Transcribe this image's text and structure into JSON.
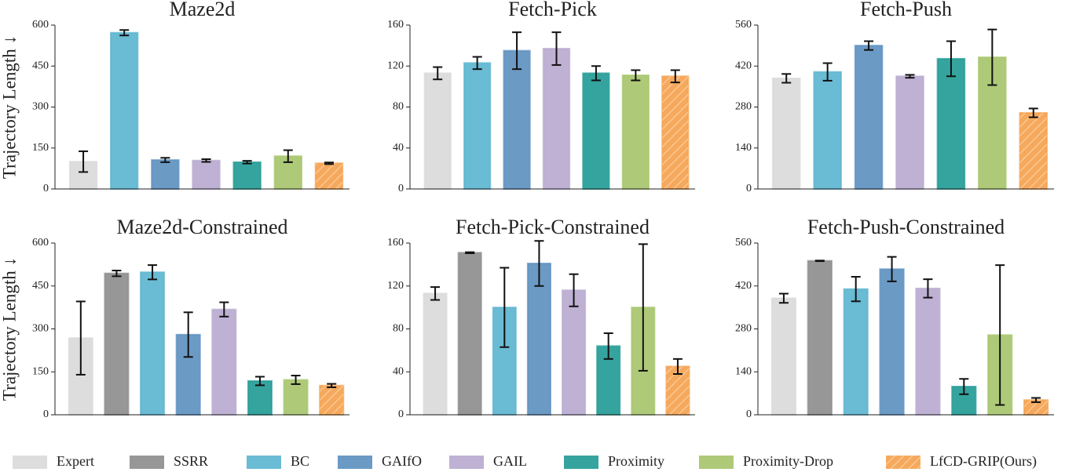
{
  "chart_data": [
    {
      "type": "bar",
      "title": "Maze2d",
      "ylabel": "Trajectory Length ↓",
      "ylim": [
        0,
        600
      ],
      "yticks": [
        0,
        150,
        300,
        450,
        600
      ],
      "series": [
        {
          "name": "Expert",
          "color": "#d9d9d9",
          "values": [
            100
          ],
          "errors": [
            38
          ]
        },
        {
          "name": "BC",
          "color": "#5ab4cf",
          "values": [
            572
          ],
          "errors": [
            10
          ]
        },
        {
          "name": "GAIfO",
          "color": "#5b8fbf",
          "values": [
            106
          ],
          "errors": [
            8
          ]
        },
        {
          "name": "GAIL",
          "color": "#b8a9cf",
          "values": [
            104
          ],
          "errors": [
            5
          ]
        },
        {
          "name": "Proximity",
          "color": "#1f9a94",
          "values": [
            98
          ],
          "errors": [
            5
          ]
        },
        {
          "name": "Proximity-Drop",
          "color": "#a5c46a",
          "values": [
            120
          ],
          "errors": [
            22
          ]
        },
        {
          "name": "LfCD-GRIP(Ours)",
          "color": "#f5a04a",
          "hatch": true,
          "values": [
            94
          ],
          "errors": [
            3
          ]
        }
      ]
    },
    {
      "type": "bar",
      "title": "Fetch-Pick",
      "ylim": [
        0,
        160
      ],
      "yticks": [
        0,
        40,
        80,
        120,
        160
      ],
      "series": [
        {
          "name": "Expert",
          "color": "#d9d9d9",
          "values": [
            113
          ],
          "errors": [
            6
          ]
        },
        {
          "name": "BC",
          "color": "#5ab4cf",
          "values": [
            123
          ],
          "errors": [
            6
          ]
        },
        {
          "name": "GAIfO",
          "color": "#5b8fbf",
          "values": [
            135
          ],
          "errors": [
            18
          ]
        },
        {
          "name": "GAIL",
          "color": "#b8a9cf",
          "values": [
            137
          ],
          "errors": [
            16
          ]
        },
        {
          "name": "Proximity",
          "color": "#1f9a94",
          "values": [
            113
          ],
          "errors": [
            7
          ]
        },
        {
          "name": "Proximity-Drop",
          "color": "#a5c46a",
          "values": [
            111
          ],
          "errors": [
            5
          ]
        },
        {
          "name": "LfCD-GRIP(Ours)",
          "color": "#f5a04a",
          "hatch": true,
          "values": [
            110
          ],
          "errors": [
            6
          ]
        }
      ]
    },
    {
      "type": "bar",
      "title": "Fetch-Push",
      "ylim": [
        0,
        560
      ],
      "yticks": [
        0,
        140,
        280,
        420,
        560
      ],
      "series": [
        {
          "name": "Expert",
          "color": "#d9d9d9",
          "values": [
            378
          ],
          "errors": [
            15
          ]
        },
        {
          "name": "BC",
          "color": "#5ab4cf",
          "values": [
            400
          ],
          "errors": [
            30
          ]
        },
        {
          "name": "GAIfO",
          "color": "#5b8fbf",
          "values": [
            490
          ],
          "errors": [
            15
          ]
        },
        {
          "name": "GAIL",
          "color": "#b8a9cf",
          "values": [
            385
          ],
          "errors": [
            5
          ]
        },
        {
          "name": "Proximity",
          "color": "#1f9a94",
          "values": [
            445
          ],
          "errors": [
            60
          ]
        },
        {
          "name": "Proximity-Drop",
          "color": "#a5c46a",
          "values": [
            450
          ],
          "errors": [
            95
          ]
        },
        {
          "name": "LfCD-GRIP(Ours)",
          "color": "#f5a04a",
          "hatch": true,
          "values": [
            260
          ],
          "errors": [
            15
          ]
        }
      ]
    },
    {
      "type": "bar",
      "title": "Maze2d-Constrained",
      "ylabel": "Trajectory Length ↓",
      "ylim": [
        0,
        600
      ],
      "yticks": [
        0,
        150,
        300,
        450,
        600
      ],
      "series": [
        {
          "name": "Expert",
          "color": "#d9d9d9",
          "values": [
            268
          ],
          "errors": [
            128
          ]
        },
        {
          "name": "SSRR",
          "color": "#8c8c8c",
          "values": [
            494
          ],
          "errors": [
            10
          ]
        },
        {
          "name": "BC",
          "color": "#5ab4cf",
          "values": [
            498
          ],
          "errors": [
            25
          ]
        },
        {
          "name": "GAIfO",
          "color": "#5b8fbf",
          "values": [
            280
          ],
          "errors": [
            78
          ]
        },
        {
          "name": "GAIL",
          "color": "#b8a9cf",
          "values": [
            368
          ],
          "errors": [
            25
          ]
        },
        {
          "name": "Proximity",
          "color": "#1f9a94",
          "values": [
            118
          ],
          "errors": [
            15
          ]
        },
        {
          "name": "Proximity-Drop",
          "color": "#a5c46a",
          "values": [
            122
          ],
          "errors": [
            15
          ]
        },
        {
          "name": "LfCD-GRIP(Ours)",
          "color": "#f5a04a",
          "hatch": true,
          "values": [
            102
          ],
          "errors": [
            6
          ]
        }
      ]
    },
    {
      "type": "bar",
      "title": "Fetch-Pick-Constrained",
      "ylim": [
        0,
        160
      ],
      "yticks": [
        0,
        40,
        80,
        120,
        160
      ],
      "series": [
        {
          "name": "Expert",
          "color": "#d9d9d9",
          "values": [
            113
          ],
          "errors": [
            6
          ]
        },
        {
          "name": "SSRR",
          "color": "#8c8c8c",
          "values": [
            151
          ],
          "errors": [
            0.5
          ]
        },
        {
          "name": "BC",
          "color": "#5ab4cf",
          "values": [
            100
          ],
          "errors": [
            37
          ]
        },
        {
          "name": "GAIfO",
          "color": "#5b8fbf",
          "values": [
            141
          ],
          "errors": [
            21
          ]
        },
        {
          "name": "GAIL",
          "color": "#b8a9cf",
          "values": [
            116
          ],
          "errors": [
            15
          ]
        },
        {
          "name": "Proximity",
          "color": "#1f9a94",
          "values": [
            64
          ],
          "errors": [
            12
          ]
        },
        {
          "name": "Proximity-Drop",
          "color": "#a5c46a",
          "values": [
            100
          ],
          "errors": [
            59
          ]
        },
        {
          "name": "LfCD-GRIP(Ours)",
          "color": "#f5a04a",
          "hatch": true,
          "values": [
            45
          ],
          "errors": [
            7
          ]
        }
      ]
    },
    {
      "type": "bar",
      "title": "Fetch-Push-Constrained",
      "ylim": [
        0,
        560
      ],
      "yticks": [
        0,
        140,
        280,
        420,
        560
      ],
      "series": [
        {
          "name": "Expert",
          "color": "#d9d9d9",
          "values": [
            380
          ],
          "errors": [
            15
          ]
        },
        {
          "name": "SSRR",
          "color": "#8c8c8c",
          "values": [
            502
          ],
          "errors": [
            1
          ]
        },
        {
          "name": "BC",
          "color": "#5ab4cf",
          "values": [
            410
          ],
          "errors": [
            40
          ]
        },
        {
          "name": "GAIfO",
          "color": "#5b8fbf",
          "values": [
            475
          ],
          "errors": [
            40
          ]
        },
        {
          "name": "GAIL",
          "color": "#b8a9cf",
          "values": [
            412
          ],
          "errors": [
            30
          ]
        },
        {
          "name": "Proximity",
          "color": "#1f9a94",
          "values": [
            92
          ],
          "errors": [
            25
          ]
        },
        {
          "name": "Proximity-Drop",
          "color": "#a5c46a",
          "values": [
            260
          ],
          "errors": [
            228
          ]
        },
        {
          "name": "LfCD-GRIP(Ours)",
          "color": "#f5a04a",
          "hatch": true,
          "values": [
            48
          ],
          "errors": [
            7
          ]
        }
      ]
    }
  ]
}
